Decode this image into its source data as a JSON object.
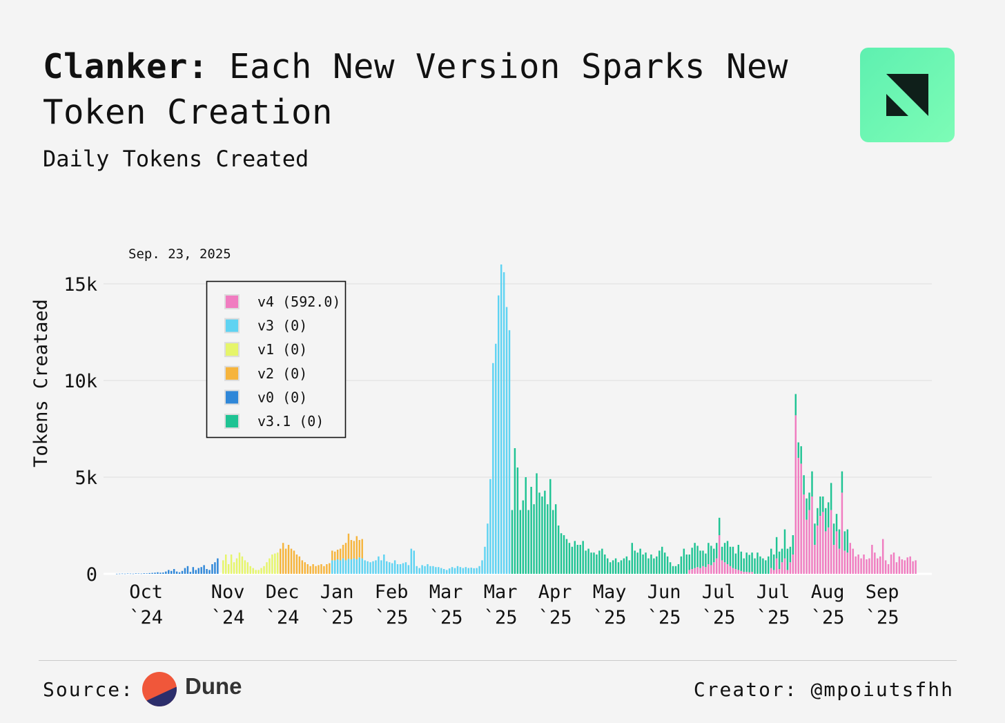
{
  "title": {
    "bold": "Clanker:",
    "rest": " Each New Version Sparks New Token Creation"
  },
  "subtitle": "Daily Tokens Created",
  "logo": {
    "icon": "dune-research-logo-icon",
    "bg": "#6ef7b3"
  },
  "footer": {
    "source_label": "Source:",
    "source_name": "Dune",
    "creator": "Creator: @mpoiutsfhh"
  },
  "chart_data": {
    "type": "bar",
    "stacked": true,
    "hover_date": "Sep. 23, 2025",
    "ylabel": "Tokens Creataed",
    "xlabel": "",
    "ylim": [
      0,
      16000
    ],
    "y_ticks": [
      0,
      5000,
      10000,
      15000
    ],
    "y_tick_labels": [
      "0",
      "5k",
      "10k",
      "15k"
    ],
    "x_tick_labels": [
      {
        "line1": "Oct",
        "line2": "`24",
        "day": 8
      },
      {
        "line1": "Nov",
        "line2": "`24",
        "day": 38
      },
      {
        "line1": "Dec",
        "line2": "`24",
        "day": 58
      },
      {
        "line1": "Jan",
        "line2": "`25",
        "day": 78
      },
      {
        "line1": "Feb",
        "line2": "`25",
        "day": 98
      },
      {
        "line1": "Mar",
        "line2": "`25",
        "day": 118
      },
      {
        "line1": "Mar",
        "line2": "`25",
        "day": 138
      },
      {
        "line1": "Apr",
        "line2": "`25",
        "day": 158
      },
      {
        "line1": "May",
        "line2": "`25",
        "day": 178
      },
      {
        "line1": "Jun",
        "line2": "`25",
        "day": 198
      },
      {
        "line1": "Jul",
        "line2": "`25",
        "day": 218
      },
      {
        "line1": "Jul",
        "line2": "`25",
        "day": 238
      },
      {
        "line1": "Aug",
        "line2": "`25",
        "day": 258
      },
      {
        "line1": "Sep",
        "line2": "`25",
        "day": 278
      }
    ],
    "grid": true,
    "legend_position": "top-left",
    "series": [
      {
        "name": "v4",
        "hover_value": "592.0",
        "color": "#f07cc0",
        "segments": [
          {
            "start": 210,
            "values": [
              200,
              250,
              300,
              350,
              300,
              400,
              350,
              500,
              450,
              600,
              800,
              2000,
              700,
              600,
              500,
              400,
              300,
              250,
              200,
              150,
              100,
              100,
              80,
              100
            ]
          },
          {
            "start": 240,
            "values": [
              300,
              200,
              800,
              250,
              600,
              800,
              200,
              600,
              1000,
              8200,
              6000,
              5700,
              4100,
              2800,
              3300,
              4000,
              1500,
              2500,
              3000,
              3200,
              2200,
              2400,
              3300,
              1500,
              2200,
              1300,
              4200,
              1200,
              1100,
              1600,
              1300,
              900,
              1000,
              800,
              1000,
              750,
              800,
              1500,
              1100,
              800,
              900,
              1800,
              700,
              500,
              1000,
              1100,
              600,
              900,
              750,
              700,
              850,
              900,
              650,
              700
            ]
          }
        ]
      },
      {
        "name": "v3",
        "hover_value": "0",
        "color": "#5fd3f2",
        "segments": [
          {
            "start": 79,
            "values": [
              700,
              700,
              750,
              700,
              800,
              700,
              780,
              750,
              800,
              750,
              850,
              800,
              700,
              650,
              600,
              650,
              700,
              900,
              700,
              1000,
              650,
              600,
              550,
              700,
              500,
              500,
              550,
              600,
              450,
              1300,
              1200,
              400,
              300,
              450,
              400,
              500,
              400,
              400,
              350,
              350,
              300,
              250,
              200,
              280,
              350,
              300,
              400,
              350,
              300,
              350,
              300,
              320,
              290,
              300,
              400,
              700,
              1400,
              2600,
              4900,
              10900,
              11900,
              14400,
              16000,
              15600,
              13800,
              12600
            ]
          }
        ]
      },
      {
        "name": "v1",
        "hover_value": "0",
        "color": "#e6f56a",
        "segments": [
          {
            "start": 39,
            "values": [
              700,
              1000,
              500,
              1000,
              600,
              800,
              1100,
              900,
              700,
              600,
              400,
              300,
              200,
              200,
              300,
              400,
              600,
              800,
              1000,
              1050,
              1100
            ]
          }
        ]
      },
      {
        "name": "v2",
        "hover_value": "0",
        "color": "#f6b43c",
        "segments": [
          {
            "start": 60,
            "values": [
              1300,
              1600,
              1300,
              1500,
              1300,
              1200,
              1000,
              900,
              700,
              600,
              500,
              400,
              500,
              400,
              450,
              500,
              400,
              500,
              550,
              500,
              450,
              500,
              600,
              700,
              900,
              1300,
              1000,
              900,
              1200,
              900,
              1000
            ]
          }
        ]
      },
      {
        "name": "v0",
        "hover_value": "0",
        "color": "#2f87d8",
        "segments": [
          {
            "start": 0,
            "values": [
              5,
              10,
              15,
              10,
              20,
              15,
              10,
              25,
              20,
              15,
              30,
              25,
              40,
              50,
              60,
              80,
              60,
              70,
              120,
              200,
              150,
              250,
              120,
              80,
              150,
              300,
              400,
              100,
              350,
              200,
              300,
              350,
              450,
              250,
              200,
              500,
              600,
              800
            ]
          }
        ]
      },
      {
        "name": "v3.1",
        "hover_value": "0",
        "color": "#1fc393",
        "segments": [
          {
            "start": 145,
            "values": [
              3300,
              6500,
              5500,
              3300,
              3800,
              5000,
              3300,
              4500,
              3600,
              5200,
              4200,
              4000,
              4300,
              3600,
              4900,
              3300,
              3600,
              2500,
              2100,
              2000,
              1800,
              1600,
              1400,
              1700,
              1500,
              1500,
              1700,
              1200,
              1300,
              1100,
              1100,
              1000,
              1200,
              1300,
              1000,
              800,
              600,
              700,
              800,
              600,
              700,
              800,
              900,
              700,
              1600,
              1200,
              1100,
              1300,
              1000,
              1100,
              800,
              1000,
              800,
              900,
              1200,
              1400,
              1100,
              900,
              600,
              400,
              400,
              500,
              900,
              1300,
              1000,
              800,
              1100,
              1300,
              1100,
              900,
              800,
              700,
              1100,
              1000,
              700,
              800,
              900,
              700,
              1000,
              1200,
              1000,
              1100,
              800,
              1300,
              1000,
              700,
              1000,
              900,
              1000,
              800,
              1100,
              900,
              800,
              700,
              900,
              1000,
              800,
              1100,
              900,
              700,
              1500,
              1100,
              800,
              1000,
              1100,
              800,
              900,
              1000,
              1100,
              900,
              1300,
              1100,
              900,
              1000,
              800,
              1200,
              1300,
              1400,
              1100,
              900,
              1000,
              1100,
              1000,
              1200
            ]
          }
        ]
      }
    ],
    "legend": [
      {
        "label": "v4 (592.0)",
        "color": "#f07cc0"
      },
      {
        "label": "v3 (0)",
        "color": "#5fd3f2"
      },
      {
        "label": "v1 (0)",
        "color": "#e6f56a"
      },
      {
        "label": "v2 (0)",
        "color": "#f6b43c"
      },
      {
        "label": "v0 (0)",
        "color": "#2f87d8"
      },
      {
        "label": "v3.1 (0)",
        "color": "#1fc393"
      }
    ]
  }
}
